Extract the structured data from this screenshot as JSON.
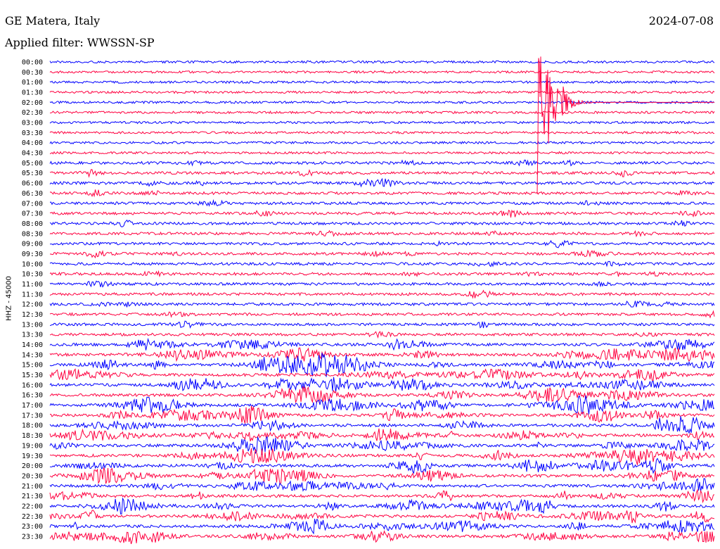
{
  "header": {
    "station": "GE Matera, Italy",
    "filter": "Applied filter: WWSSN-SP",
    "date": "2024-07-08"
  },
  "chart_data": {
    "type": "line",
    "title": "GE Matera, Italy",
    "subtitle": "Applied filter: WWSSN-SP",
    "date": "2024-07-08",
    "ylabel": "HHZ - 45000",
    "row_labels": [
      "00:00",
      "00:30",
      "01:00",
      "01:30",
      "02:00",
      "02:30",
      "03:00",
      "03:30",
      "04:00",
      "04:30",
      "05:00",
      "05:30",
      "06:00",
      "06:30",
      "07:00",
      "07:30",
      "08:00",
      "08:30",
      "09:00",
      "09:30",
      "10:00",
      "10:30",
      "11:00",
      "11:30",
      "12:00",
      "12:30",
      "13:00",
      "13:30",
      "14:00",
      "14:30",
      "15:00",
      "15:30",
      "16:00",
      "16:30",
      "17:00",
      "17:30",
      "18:00",
      "18:30",
      "19:00",
      "19:30",
      "20:00",
      "20:30",
      "21:00",
      "21:30",
      "22:00",
      "22:30",
      "23:00",
      "23:30"
    ],
    "row_minutes": 30,
    "colors": [
      "#0000ff",
      "#ff0040"
    ],
    "grid": false,
    "events": [
      {
        "row": "02:00",
        "minute_start": 22,
        "minute_end": 30,
        "note": "large earthquake arrival"
      }
    ]
  }
}
